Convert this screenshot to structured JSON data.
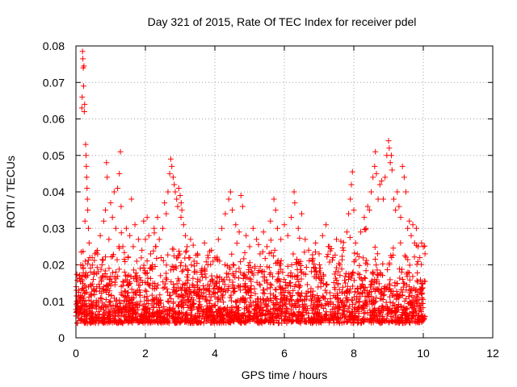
{
  "chart_data": {
    "type": "scatter",
    "title": "Day 321 of 2015, Rate Of TEC Index for receiver pdel",
    "xlabel": "GPS time / hours",
    "ylabel": "ROTI / TECUs",
    "xlim": [
      0,
      12
    ],
    "ylim": [
      0,
      0.08
    ],
    "xticks": [
      0,
      2,
      4,
      6,
      8,
      10,
      12
    ],
    "yticks": [
      0,
      0.01,
      0.02,
      0.03,
      0.04,
      0.05,
      0.06,
      0.07,
      0.08
    ],
    "xtick_labels": [
      "0",
      "2",
      "4",
      "6",
      "8",
      "10",
      "12"
    ],
    "ytick_labels": [
      "0",
      "0.01",
      "0.02",
      "0.03",
      "0.04",
      "0.05",
      "0.06",
      "0.07",
      "0.08"
    ],
    "grid": true,
    "marker": "+",
    "color": "#ff0000",
    "series": [
      {
        "name": "ROTI",
        "points": [
          [
            0.0,
            0.006
          ],
          [
            0.02,
            0.01
          ],
          [
            0.05,
            0.008
          ],
          [
            0.08,
            0.013
          ],
          [
            0.1,
            0.017
          ],
          [
            0.12,
            0.007
          ],
          [
            0.14,
            0.02
          ],
          [
            0.16,
            0.011
          ],
          [
            0.17,
            0.063
          ],
          [
            0.18,
            0.066
          ],
          [
            0.19,
            0.0785
          ],
          [
            0.2,
            0.0765
          ],
          [
            0.21,
            0.074
          ],
          [
            0.22,
            0.069
          ],
          [
            0.23,
            0.0745
          ],
          [
            0.24,
            0.062
          ],
          [
            0.25,
            0.064
          ],
          [
            0.26,
            0.032
          ],
          [
            0.27,
            0.021
          ],
          [
            0.28,
            0.053
          ],
          [
            0.29,
            0.05
          ],
          [
            0.3,
            0.047
          ],
          [
            0.31,
            0.044
          ],
          [
            0.32,
            0.041
          ],
          [
            0.33,
            0.038
          ],
          [
            0.34,
            0.035
          ],
          [
            0.36,
            0.03
          ],
          [
            0.38,
            0.026
          ],
          [
            0.4,
            0.022
          ],
          [
            0.42,
            0.018
          ],
          [
            0.45,
            0.012
          ],
          [
            0.48,
            0.009
          ],
          [
            0.5,
            0.016
          ],
          [
            0.55,
            0.023
          ],
          [
            0.6,
            0.014
          ],
          [
            0.65,
            0.01
          ],
          [
            0.7,
            0.028
          ],
          [
            0.75,
            0.02
          ],
          [
            0.8,
            0.032
          ],
          [
            0.85,
            0.035
          ],
          [
            0.88,
            0.048
          ],
          [
            0.9,
            0.044
          ],
          [
            0.95,
            0.027
          ],
          [
            1.0,
            0.037
          ],
          [
            1.05,
            0.033
          ],
          [
            1.1,
            0.04
          ],
          [
            1.15,
            0.03
          ],
          [
            1.2,
            0.041
          ],
          [
            1.25,
            0.045
          ],
          [
            1.28,
            0.051
          ],
          [
            1.3,
            0.036
          ],
          [
            1.35,
            0.025
          ],
          [
            1.4,
            0.018
          ],
          [
            1.45,
            0.03
          ],
          [
            1.5,
            0.022
          ],
          [
            1.55,
            0.028
          ],
          [
            1.6,
            0.038
          ],
          [
            1.65,
            0.025
          ],
          [
            1.7,
            0.031
          ],
          [
            1.75,
            0.021
          ],
          [
            1.8,
            0.027
          ],
          [
            1.85,
            0.019
          ],
          [
            1.9,
            0.024
          ],
          [
            1.95,
            0.032
          ],
          [
            2.0,
            0.027
          ],
          [
            2.05,
            0.033
          ],
          [
            2.1,
            0.028
          ],
          [
            2.15,
            0.023
          ],
          [
            2.2,
            0.02
          ],
          [
            2.25,
            0.03
          ],
          [
            2.3,
            0.025
          ],
          [
            2.35,
            0.033
          ],
          [
            2.4,
            0.027
          ],
          [
            2.45,
            0.022
          ],
          [
            2.5,
            0.03
          ],
          [
            2.55,
            0.037
          ],
          [
            2.6,
            0.034
          ],
          [
            2.65,
            0.04
          ],
          [
            2.7,
            0.045
          ],
          [
            2.73,
            0.049
          ],
          [
            2.76,
            0.047
          ],
          [
            2.8,
            0.044
          ],
          [
            2.83,
            0.042
          ],
          [
            2.86,
            0.04
          ],
          [
            2.9,
            0.038
          ],
          [
            2.93,
            0.036
          ],
          [
            2.96,
            0.041
          ],
          [
            3.0,
            0.039
          ],
          [
            3.03,
            0.037
          ],
          [
            3.05,
            0.035
          ],
          [
            3.1,
            0.031
          ],
          [
            3.15,
            0.028
          ],
          [
            3.2,
            0.025
          ],
          [
            3.25,
            0.022
          ],
          [
            3.3,
            0.027
          ],
          [
            3.4,
            0.021
          ],
          [
            3.5,
            0.023
          ],
          [
            3.6,
            0.018
          ],
          [
            3.7,
            0.026
          ],
          [
            3.8,
            0.02
          ],
          [
            3.9,
            0.024
          ],
          [
            4.0,
            0.022
          ],
          [
            4.1,
            0.027
          ],
          [
            4.2,
            0.03
          ],
          [
            4.3,
            0.034
          ],
          [
            4.4,
            0.038
          ],
          [
            4.45,
            0.04
          ],
          [
            4.5,
            0.035
          ],
          [
            4.6,
            0.031
          ],
          [
            4.7,
            0.029
          ],
          [
            4.75,
            0.039
          ],
          [
            4.8,
            0.036
          ],
          [
            4.9,
            0.028
          ],
          [
            5.0,
            0.025
          ],
          [
            5.1,
            0.03
          ],
          [
            5.2,
            0.027
          ],
          [
            5.3,
            0.023
          ],
          [
            5.4,
            0.029
          ],
          [
            5.5,
            0.025
          ],
          [
            5.6,
            0.032
          ],
          [
            5.7,
            0.038
          ],
          [
            5.75,
            0.035
          ],
          [
            5.8,
            0.03
          ],
          [
            5.9,
            0.027
          ],
          [
            6.0,
            0.031
          ],
          [
            6.1,
            0.028
          ],
          [
            6.2,
            0.033
          ],
          [
            6.28,
            0.04
          ],
          [
            6.3,
            0.037
          ],
          [
            6.4,
            0.03
          ],
          [
            6.5,
            0.034
          ],
          [
            6.6,
            0.027
          ],
          [
            6.7,
            0.024
          ],
          [
            6.8,
            0.021
          ],
          [
            6.9,
            0.026
          ],
          [
            7.0,
            0.023
          ],
          [
            7.1,
            0.028
          ],
          [
            7.2,
            0.031
          ],
          [
            7.3,
            0.025
          ],
          [
            7.4,
            0.022
          ],
          [
            7.5,
            0.027
          ],
          [
            7.6,
            0.02
          ],
          [
            7.7,
            0.024
          ],
          [
            7.8,
            0.029
          ],
          [
            7.85,
            0.034
          ],
          [
            7.9,
            0.038
          ],
          [
            7.93,
            0.042
          ],
          [
            7.96,
            0.0455
          ],
          [
            8.0,
            0.035
          ],
          [
            8.05,
            0.026
          ],
          [
            8.1,
            0.023
          ],
          [
            8.2,
            0.029
          ],
          [
            8.3,
            0.033
          ],
          [
            8.35,
            0.03
          ],
          [
            8.4,
            0.036
          ],
          [
            8.45,
            0.035
          ],
          [
            8.5,
            0.04
          ],
          [
            8.55,
            0.044
          ],
          [
            8.6,
            0.047
          ],
          [
            8.62,
            0.051
          ],
          [
            8.65,
            0.045
          ],
          [
            8.7,
            0.038
          ],
          [
            8.75,
            0.042
          ],
          [
            8.8,
            0.043
          ],
          [
            8.85,
            0.038
          ],
          [
            8.9,
            0.044
          ],
          [
            8.95,
            0.05
          ],
          [
            9.0,
            0.054
          ],
          [
            9.02,
            0.052
          ],
          [
            9.05,
            0.048
          ],
          [
            9.08,
            0.05
          ],
          [
            9.1,
            0.046
          ],
          [
            9.15,
            0.038
          ],
          [
            9.2,
            0.035
          ],
          [
            9.25,
            0.04
          ],
          [
            9.3,
            0.036
          ],
          [
            9.35,
            0.033
          ],
          [
            9.4,
            0.047
          ],
          [
            9.45,
            0.044
          ],
          [
            9.5,
            0.04
          ],
          [
            9.55,
            0.03
          ],
          [
            9.6,
            0.032
          ],
          [
            9.65,
            0.028
          ],
          [
            9.7,
            0.031
          ],
          [
            9.75,
            0.026
          ],
          [
            9.8,
            0.03
          ],
          [
            9.85,
            0.025
          ],
          [
            9.9,
            0.022
          ],
          [
            9.95,
            0.026
          ],
          [
            10.0,
            0.025
          ],
          [
            10.05,
            0.023
          ]
        ]
      }
    ]
  }
}
